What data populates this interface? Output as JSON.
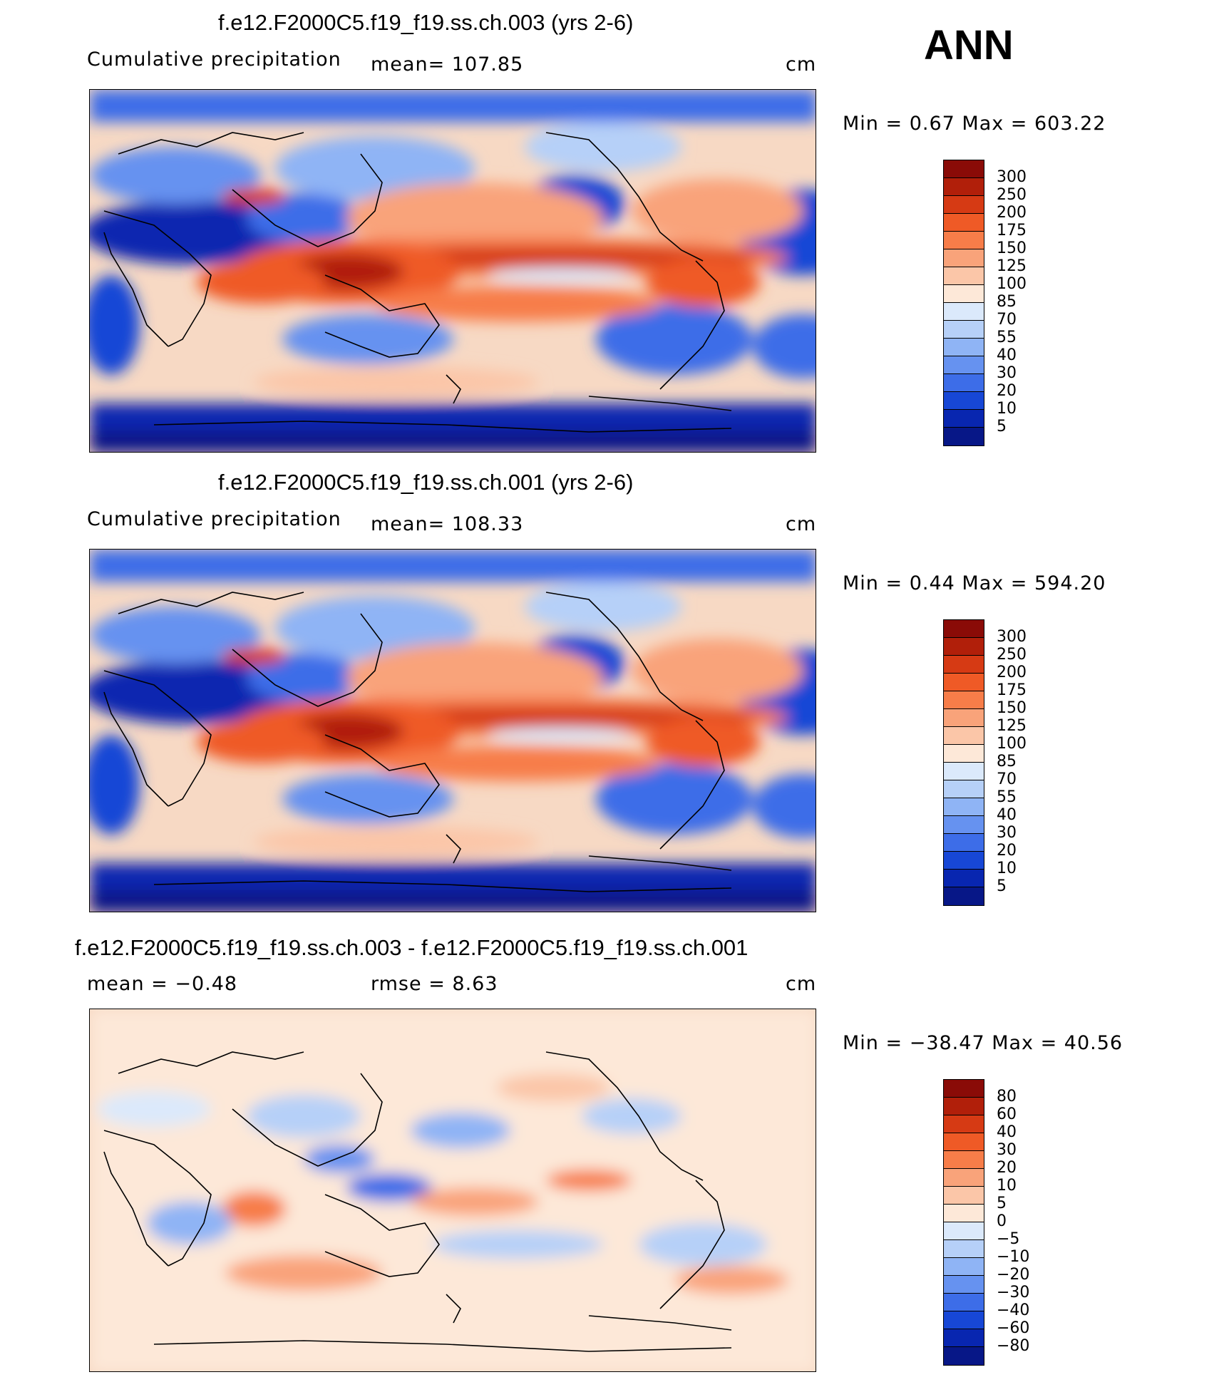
{
  "season": "ANN",
  "panels": [
    {
      "title": "f.e12.F2000C5.f19_f19.ss.ch.003 (yrs 2-6)",
      "left_label": "Cumulative precipitation",
      "center_label": "mean=  107.85",
      "units": "cm",
      "minmax": "Min =    0.67  Max =  603.22",
      "field": "precipitation"
    },
    {
      "title": "f.e12.F2000C5.f19_f19.ss.ch.001 (yrs 2-6)",
      "left_label": "Cumulative precipitation",
      "center_label": "mean=  108.33",
      "units": "cm",
      "minmax": "Min =    0.44  Max =  594.20",
      "field": "precipitation"
    },
    {
      "title": "f.e12.F2000C5.f19_f19.ss.ch.003 - f.e12.F2000C5.f19_f19.ss.ch.001",
      "left_label": "mean  =   −0.48",
      "center_label": "rmse  =     8.63",
      "units": "cm",
      "minmax": "Min =  −38.47  Max =    40.56",
      "field": "difference"
    }
  ],
  "colorbars": {
    "precip": {
      "labels": [
        "300",
        "250",
        "200",
        "175",
        "150",
        "125",
        "100",
        "85",
        "70",
        "55",
        "40",
        "30",
        "20",
        "10",
        "5"
      ],
      "colors": [
        "#8a0b07",
        "#b11f0a",
        "#d63a14",
        "#ef5a26",
        "#f77d49",
        "#f9a37a",
        "#fbc6a8",
        "#fde8d8",
        "#dbe9fb",
        "#b6d0f8",
        "#8fb4f5",
        "#6692f0",
        "#3d6de8",
        "#1747d6",
        "#0826b0",
        "#071787"
      ]
    },
    "diff": {
      "labels": [
        "80",
        "60",
        "40",
        "30",
        "20",
        "10",
        "5",
        "0",
        "−5",
        "−10",
        "−20",
        "−30",
        "−40",
        "−60",
        "−80"
      ],
      "colors": [
        "#8a0b07",
        "#b11f0a",
        "#d63a14",
        "#ef5a26",
        "#f77d49",
        "#f9a37a",
        "#fbc6a8",
        "#fde8d8",
        "#dbe9fb",
        "#b6d0f8",
        "#8fb4f5",
        "#6692f0",
        "#3d6de8",
        "#1747d6",
        "#0826b0",
        "#071787"
      ]
    }
  }
}
